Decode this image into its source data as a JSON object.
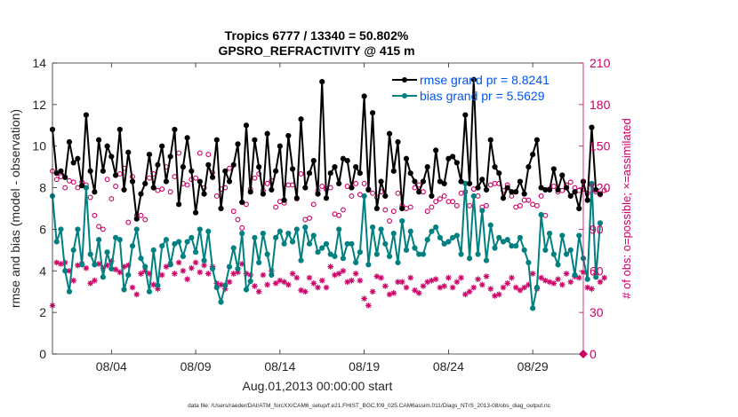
{
  "chart_data": {
    "type": "line",
    "title": "Tropics 6777 / 13340 = 50.802%",
    "subtitle": "GPSRO_REFRACTIVITY @ 415 m",
    "xlabel": "Aug.01,2013 00:00:00 start",
    "ylabel": "rmse and bias (model - observation)",
    "y2label": "# of obs: o=possible; ×=assimilated",
    "footer": "data file: /Users/raeder/DAI/ATM_forcXX/CAM6_setup/f.e21.FHIST_BGC.f09_025.CAM6assim.011/Diags_NTrS_2013-08/obs_diag_output.nc",
    "xlim": [
      0.5,
      32
    ],
    "ylim": [
      0,
      14
    ],
    "y2lim": [
      0,
      210
    ],
    "xticks": [
      {
        "x": 4,
        "label": "08/04"
      },
      {
        "x": 9,
        "label": "08/09"
      },
      {
        "x": 14,
        "label": "08/14"
      },
      {
        "x": 19,
        "label": "08/19"
      },
      {
        "x": 24,
        "label": "08/24"
      },
      {
        "x": 29,
        "label": "08/29"
      }
    ],
    "yticks": [
      "0",
      "2",
      "4",
      "6",
      "8",
      "10",
      "12",
      "14"
    ],
    "y2ticks": [
      "0",
      "30",
      "60",
      "90",
      "120",
      "150",
      "180",
      "210"
    ],
    "legend": [
      {
        "label": "rmse grand pr = 8.8241",
        "color": "#000000"
      },
      {
        "label": "bias grand pr = 5.5629",
        "color": "#008080"
      }
    ],
    "series": [
      {
        "name": "rmse",
        "color": "#000000",
        "x0": 0.5,
        "dx": 0.25,
        "values": [
          10.8,
          8.7,
          8.8,
          8.5,
          10.2,
          9.2,
          9.4,
          8.1,
          11.5,
          8.8,
          7.8,
          10.3,
          8.8,
          10.0,
          9.5,
          8.6,
          10.8,
          7.9,
          9.7,
          8.3,
          6.5,
          7.7,
          8.2,
          9.6,
          8.0,
          9.1,
          10.0,
          8.3,
          9.5,
          10.8,
          7.2,
          9.0,
          10.4,
          8.8,
          6.8,
          8.3,
          7.7,
          9.1,
          8.5,
          10.3,
          7.0,
          8.8,
          8.3,
          9.1,
          10.1,
          7.3,
          11.0,
          7.8,
          10.3,
          9.0,
          7.7,
          10.6,
          7.9,
          8.8,
          10.0,
          7.4,
          10.5,
          8.9,
          7.5,
          11.3,
          8.0,
          8.7,
          9.3,
          7.7,
          13.1,
          7.5,
          8.7,
          9.0,
          8.2,
          9.4,
          9.3,
          8.0,
          9.0,
          8.7,
          12.4,
          7.9,
          11.6,
          7.0,
          8.3,
          7.6,
          10.6,
          8.8,
          10.2,
          7.0,
          9.4,
          8.7,
          8.3,
          7.8,
          8.3,
          9.0,
          7.6,
          9.8,
          8.3,
          8.2,
          9.4,
          9.5,
          9.2,
          8.3,
          11.5,
          8.2,
          13.2,
          8.0,
          8.4,
          7.9,
          10.3,
          9.0,
          8.7,
          7.5,
          8.0,
          7.8,
          7.8,
          8.3,
          7.7,
          9.0,
          9.6,
          10.3,
          8.0,
          7.9,
          7.9,
          8.9,
          7.9,
          8.6,
          8.0,
          7.6,
          7.8,
          7.0,
          8.3,
          7.4,
          10.9,
          7.9,
          7.7
        ]
      },
      {
        "name": "bias",
        "color": "#008080",
        "x0": 0.5,
        "dx": 0.25,
        "values": [
          7.6,
          5.4,
          6.0,
          4.0,
          3.0,
          5.0,
          6.0,
          4.3,
          8.0,
          4.8,
          4.3,
          5.5,
          3.7,
          4.9,
          4.1,
          5.6,
          5.5,
          3.1,
          3.8,
          5.2,
          6.0,
          4.6,
          4.2,
          3.0,
          5.0,
          3.3,
          5.2,
          5.5,
          4.3,
          5.3,
          5.4,
          4.7,
          5.4,
          5.6,
          4.9,
          6.0,
          4.5,
          5.9,
          4.1,
          3.2,
          2.5,
          3.3,
          4.2,
          5.1,
          4.1,
          5.8,
          3.1,
          3.5,
          5.6,
          4.4,
          5.8,
          4.8,
          3.8,
          5.6,
          5.9,
          5.3,
          5.8,
          5.4,
          6.0,
          4.5,
          6.1,
          5.3,
          5.7,
          4.9,
          5.1,
          5.3,
          4.8,
          4.7,
          6.0,
          4.6,
          5.3,
          5.3,
          4.4,
          4.9,
          7.6,
          4.3,
          6.1,
          4.8,
          6.0,
          5.3,
          4.7,
          5.8,
          4.4,
          6.4,
          5.0,
          5.9,
          5.1,
          4.8,
          4.8,
          5.5,
          5.9,
          6.1,
          5.6,
          5.3,
          5.4,
          5.6,
          5.7,
          4.8,
          8.2,
          4.6,
          7.6,
          4.8,
          6.9,
          4.5,
          6.2,
          5.1,
          5.6,
          5.4,
          5.5,
          5.2,
          5.2,
          5.6,
          5.0,
          4.4,
          2.2,
          3.2,
          6.7,
          5.0,
          5.8,
          4.8,
          4.3,
          5.7,
          4.8,
          5.0,
          3.8,
          5.7,
          4.6,
          3.6,
          8.2,
          3.7,
          6.3
        ]
      },
      {
        "name": "obs possible",
        "axis": "right",
        "color": "#cc0066",
        "marker": "circle",
        "x0": 0.5,
        "dx": 0.25,
        "values": [
          132,
          126,
          128,
          120,
          125,
          124,
          120,
          124,
          122,
          113,
          100,
          92,
          90,
          126,
          112,
          121,
          130,
          134,
          95,
          128,
          100,
          100,
          97,
          127,
          130,
          118,
          119,
          135,
          117,
          128,
          145,
          123,
          122,
          126,
          127,
          145,
          120,
          144,
          131,
          114,
          119,
          120,
          134,
          103,
          97,
          91,
          108,
          119,
          127,
          130,
          118,
          123,
          125,
          106,
          110,
          109,
          122,
          122,
          112,
          130,
          97,
          98,
          108,
          118,
          121,
          119,
          120,
          101,
          100,
          104,
          121,
          114,
          123,
          115,
          123,
          119,
          116,
          113,
          117,
          104,
          96,
          103,
          116,
          107,
          105,
          106,
          120,
          122,
          117,
          103,
          106,
          110,
          112,
          114,
          110,
          110,
          107,
          116,
          117,
          107,
          119,
          114,
          106,
          107,
          122,
          123,
          123,
          118,
          122,
          114,
          106,
          107,
          111,
          111,
          108,
          107,
          114,
          100,
          119,
          121,
          117,
          118,
          122,
          124,
          120,
          118,
          119,
          116,
          122,
          117,
          115,
          118
        ]
      },
      {
        "name": "obs assimilated",
        "axis": "right",
        "color": "#cc0066",
        "marker": "asterisk",
        "x0": 0.5,
        "dx": 0.25,
        "values": [
          35,
          66,
          65,
          66,
          60,
          53,
          64,
          65,
          62,
          51,
          53,
          65,
          62,
          64,
          67,
          61,
          59,
          63,
          64,
          48,
          43,
          58,
          60,
          58,
          50,
          47,
          57,
          63,
          65,
          58,
          66,
          60,
          54,
          62,
          66,
          59,
          64,
          58,
          63,
          51,
          50,
          47,
          52,
          58,
          59,
          65,
          58,
          57,
          49,
          45,
          57,
          50,
          60,
          51,
          53,
          52,
          50,
          58,
          55,
          46,
          45,
          55,
          51,
          48,
          53,
          48,
          63,
          57,
          58,
          60,
          52,
          53,
          58,
          53,
          40,
          35,
          45,
          56,
          55,
          49,
          43,
          44,
          52,
          52,
          48,
          55,
          46,
          44,
          49,
          52,
          53,
          54,
          48,
          49,
          55,
          48,
          52,
          55,
          43,
          45,
          48,
          54,
          50,
          56,
          47,
          42,
          43,
          48,
          51,
          55,
          48,
          46,
          48,
          50,
          58,
          47,
          55,
          53,
          52,
          51,
          54,
          50,
          58,
          52,
          56,
          55,
          59,
          48,
          47,
          58,
          52,
          55
        ]
      }
    ]
  }
}
